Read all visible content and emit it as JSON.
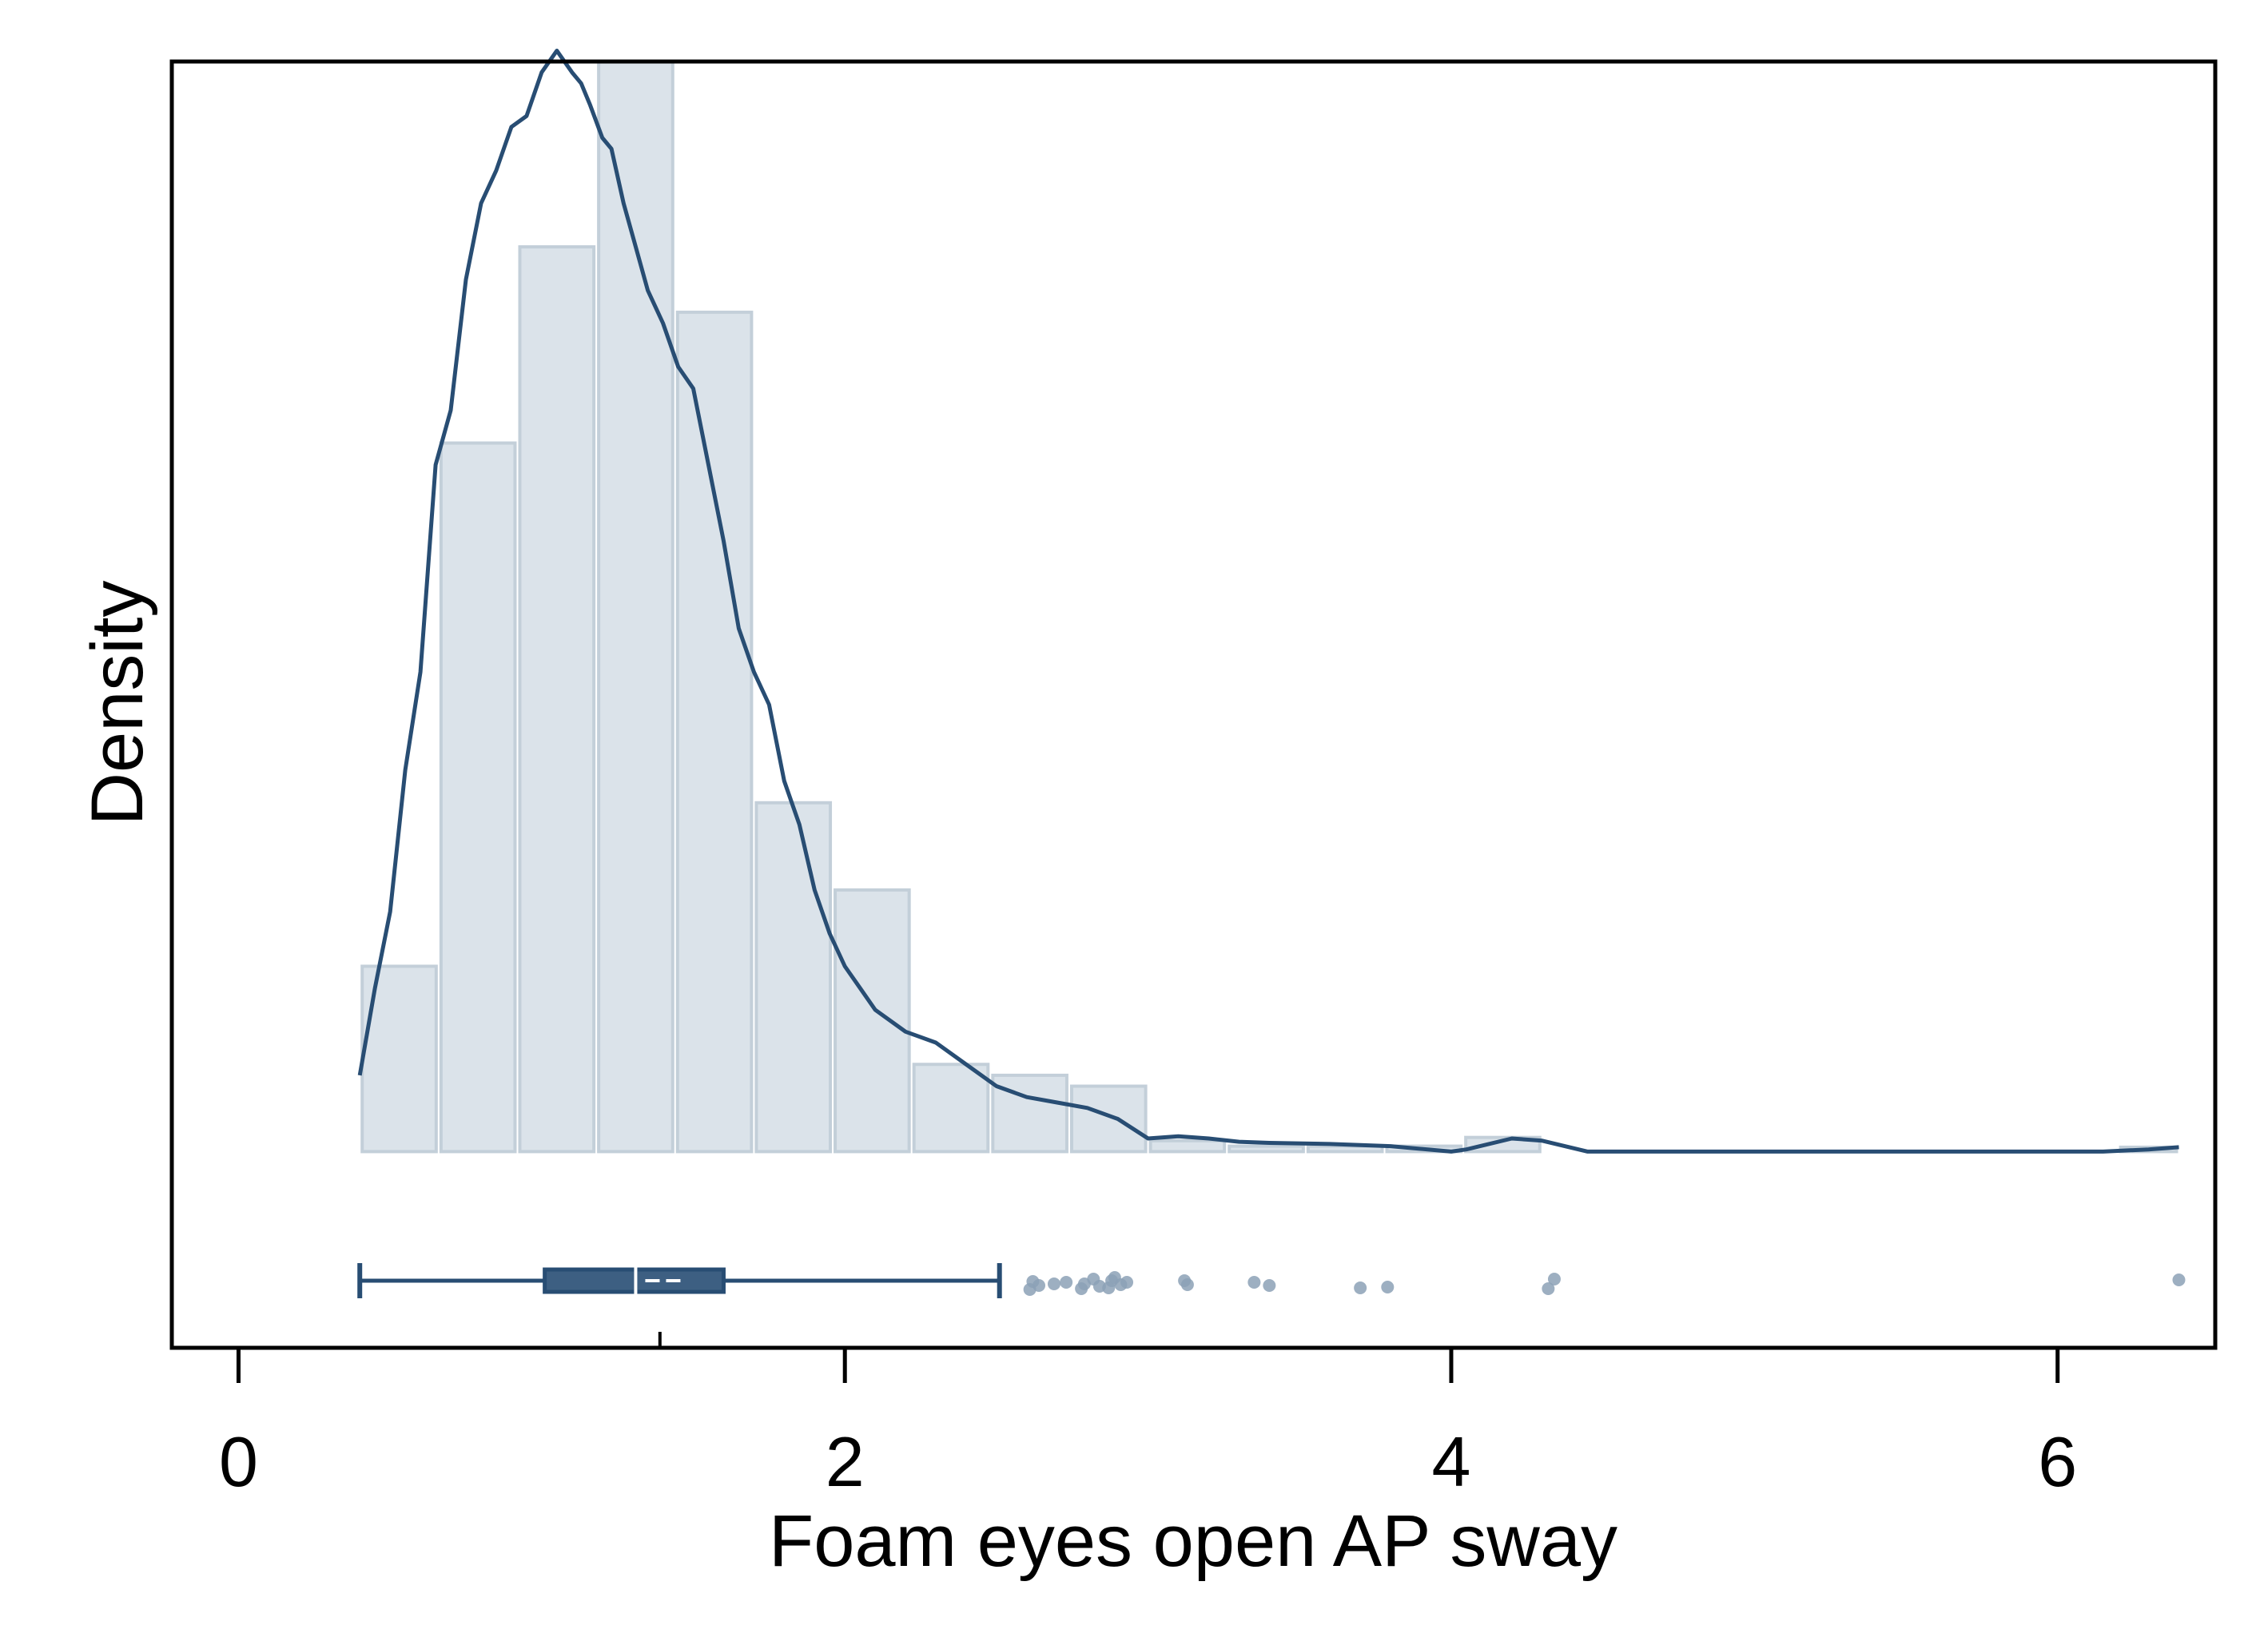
{
  "chart_data": {
    "type": "histogram",
    "xlabel": "Foam eyes open AP sway",
    "ylabel": "Density",
    "xlim": [
      -0.22,
      6.52
    ],
    "ylim": [
      -0.18,
      1.0
    ],
    "x_ticks": [
      0,
      2,
      4,
      6
    ],
    "x_tick_labels": [
      "0",
      "2",
      "4",
      "6"
    ],
    "y_ticks_shown": false,
    "colors": {
      "bar_fill": "#dbe3ea",
      "bar_stroke": "#c3cfd9",
      "density_line": "#284d73",
      "box": "#284d73",
      "median_mark": "#ffffff",
      "outlier": "#8ca1b6",
      "frame": "#000000"
    },
    "histogram": {
      "bin_width": 0.26,
      "bins": [
        {
          "x0": 0.4,
          "x1": 0.66,
          "density": 0.17
        },
        {
          "x0": 0.66,
          "x1": 0.92,
          "density": 0.65
        },
        {
          "x0": 0.92,
          "x1": 1.18,
          "density": 0.83
        },
        {
          "x0": 1.18,
          "x1": 1.44,
          "density": 1.0
        },
        {
          "x0": 1.44,
          "x1": 1.7,
          "density": 0.77
        },
        {
          "x0": 1.7,
          "x1": 1.96,
          "density": 0.32
        },
        {
          "x0": 1.96,
          "x1": 2.22,
          "density": 0.24
        },
        {
          "x0": 2.22,
          "x1": 2.48,
          "density": 0.08
        },
        {
          "x0": 2.48,
          "x1": 2.74,
          "density": 0.07
        },
        {
          "x0": 2.74,
          "x1": 3.0,
          "density": 0.06
        },
        {
          "x0": 3.0,
          "x1": 3.26,
          "density": 0.01
        },
        {
          "x0": 3.26,
          "x1": 3.52,
          "density": 0.005
        },
        {
          "x0": 3.52,
          "x1": 3.78,
          "density": 0.005
        },
        {
          "x0": 3.78,
          "x1": 4.04,
          "density": 0.005
        },
        {
          "x0": 4.04,
          "x1": 4.3,
          "density": 0.013
        },
        {
          "x0": 6.2,
          "x1": 6.4,
          "density": 0.004
        }
      ]
    },
    "density_curve": {
      "x": [
        0.4,
        0.45,
        0.5,
        0.55,
        0.6,
        0.65,
        0.7,
        0.75,
        0.8,
        0.85,
        0.9,
        0.95,
        1.0,
        1.05,
        1.1,
        1.13,
        1.16,
        1.2,
        1.23,
        1.27,
        1.3,
        1.35,
        1.4,
        1.45,
        1.5,
        1.55,
        1.6,
        1.65,
        1.7,
        1.75,
        1.8,
        1.85,
        1.9,
        1.95,
        2.0,
        2.05,
        2.1,
        2.2,
        2.3,
        2.4,
        2.5,
        2.6,
        2.7,
        2.8,
        2.9,
        3.0,
        3.1,
        3.2,
        3.3,
        3.4,
        3.6,
        3.8,
        4.0,
        4.05,
        4.2,
        4.3,
        4.45,
        4.55,
        4.8,
        5.2,
        5.6,
        6.0,
        6.15,
        6.3,
        6.4
      ],
      "y": [
        0.07,
        0.15,
        0.22,
        0.35,
        0.44,
        0.63,
        0.68,
        0.8,
        0.87,
        0.9,
        0.94,
        0.95,
        0.99,
        1.01,
        0.99,
        0.98,
        0.96,
        0.93,
        0.92,
        0.87,
        0.84,
        0.79,
        0.76,
        0.72,
        0.7,
        0.63,
        0.56,
        0.48,
        0.44,
        0.41,
        0.34,
        0.3,
        0.24,
        0.2,
        0.17,
        0.15,
        0.13,
        0.11,
        0.1,
        0.08,
        0.06,
        0.05,
        0.045,
        0.04,
        0.03,
        0.012,
        0.014,
        0.012,
        0.009,
        0.008,
        0.007,
        0.005,
        0.0,
        0.002,
        0.012,
        0.01,
        0.0,
        0.0,
        0.0,
        0.0,
        0.0,
        0.0,
        0.0,
        0.002,
        0.004
      ]
    },
    "boxplot": {
      "whisker_low": 0.4,
      "q1": 1.01,
      "median": 1.31,
      "mean": 1.39,
      "q3": 1.6,
      "whisker_high": 2.51,
      "outliers": [
        2.61,
        2.62,
        2.64,
        2.69,
        2.73,
        2.78,
        2.79,
        2.82,
        2.84,
        2.87,
        2.88,
        2.89,
        2.91,
        2.93,
        3.12,
        3.13,
        3.35,
        3.4,
        3.7,
        3.79,
        4.32,
        4.34,
        6.4
      ]
    }
  }
}
